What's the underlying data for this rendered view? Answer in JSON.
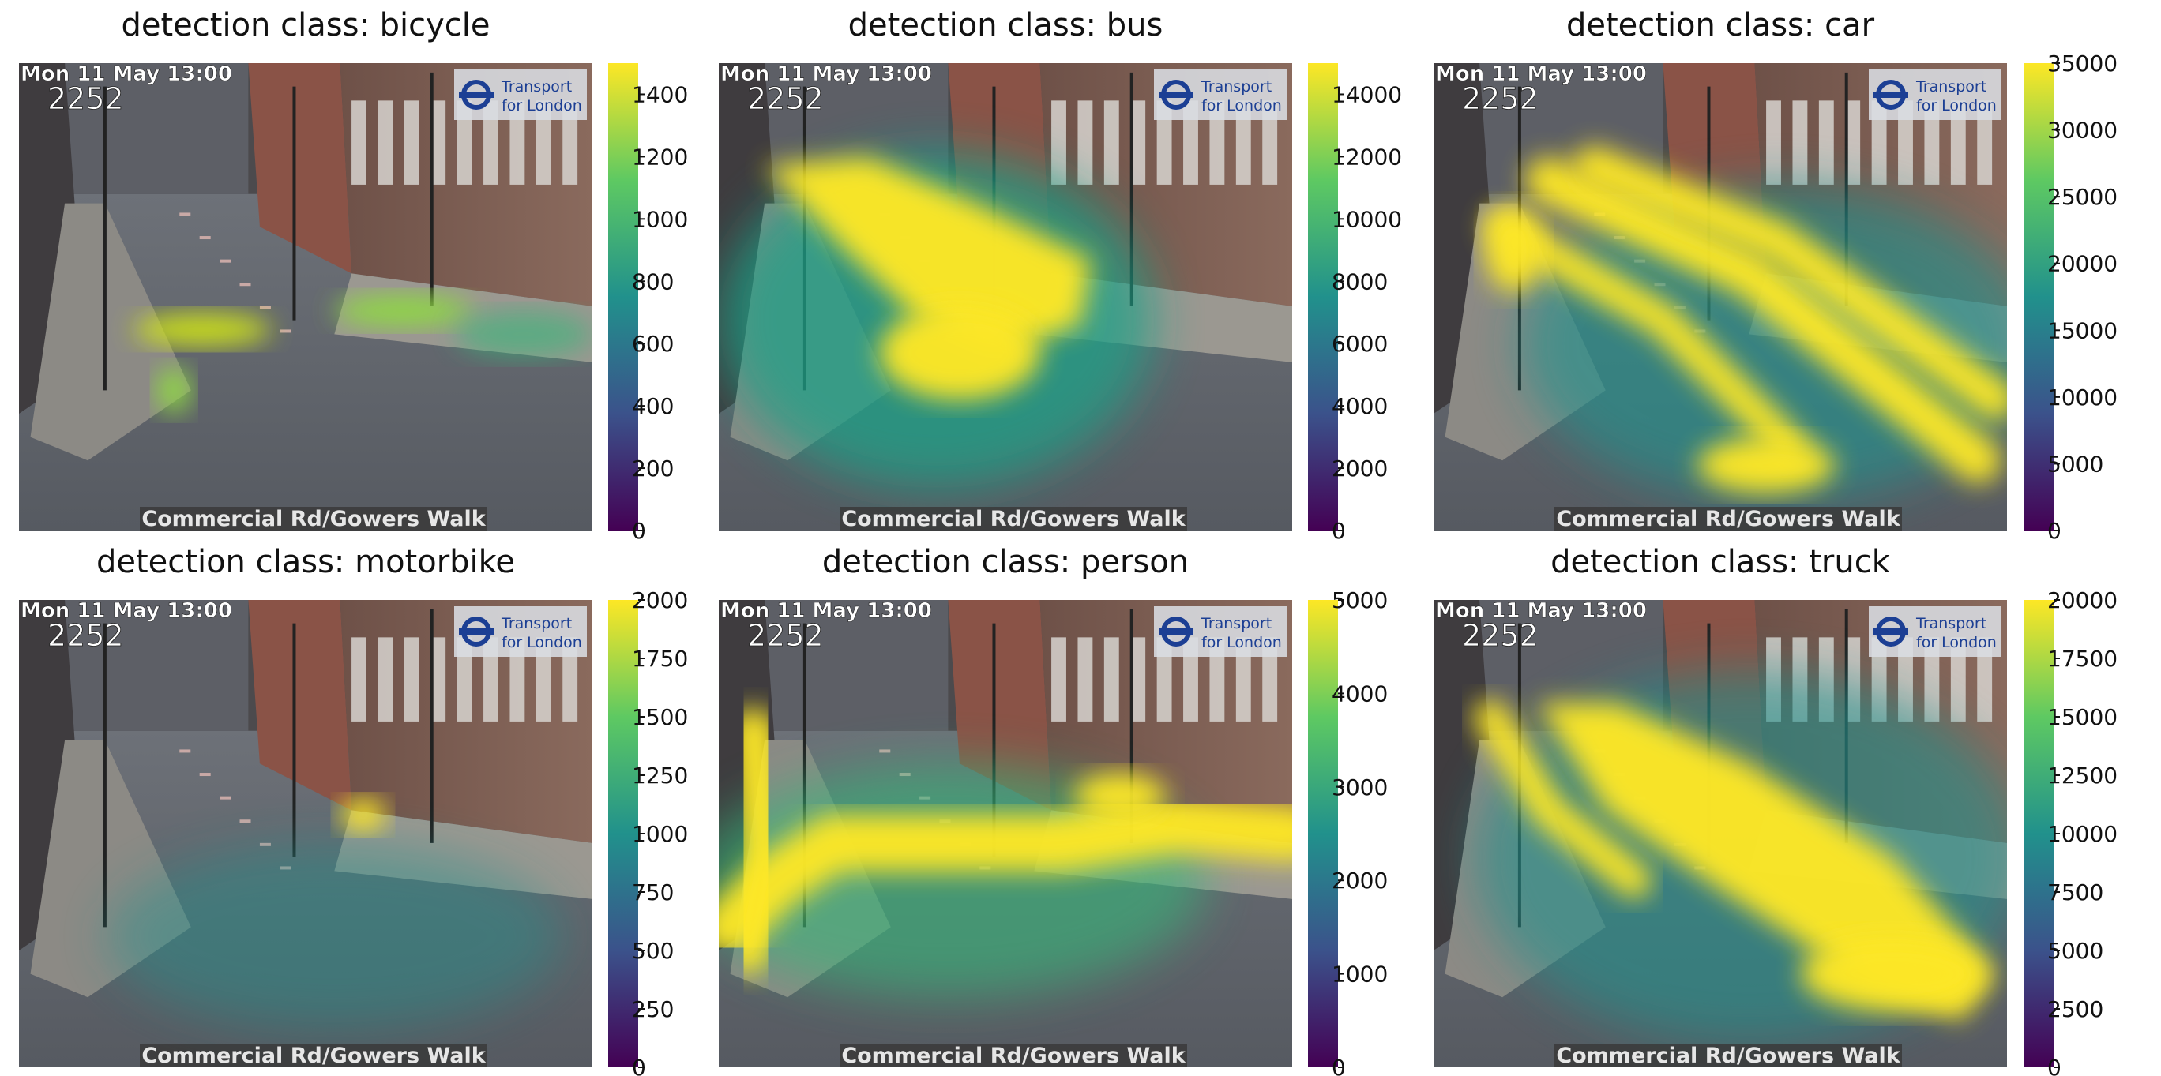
{
  "figure": {
    "colormap": [
      "#440154",
      "#3b528b",
      "#21918c",
      "#5ec962",
      "#fde725"
    ]
  },
  "chart_data": [
    {
      "type": "heatmap",
      "title": "detection class: bicycle",
      "camera": {
        "timestamp": "Mon 11 May 13:00",
        "id": "2252",
        "logo": "Transport for London",
        "location": "Commercial Rd/Gowers Walk"
      },
      "colorbar": {
        "range": [
          0,
          1500
        ],
        "ticks": [
          0,
          200,
          400,
          600,
          800,
          1000,
          1200,
          1400
        ]
      }
    },
    {
      "type": "heatmap",
      "title": "detection class: bus",
      "camera": {
        "timestamp": "Mon 11 May 13:00",
        "id": "2252",
        "logo": "Transport for London",
        "location": "Commercial Rd/Gowers Walk"
      },
      "colorbar": {
        "range": [
          0,
          15000
        ],
        "ticks": [
          0,
          2000,
          4000,
          6000,
          8000,
          10000,
          12000,
          14000
        ]
      }
    },
    {
      "type": "heatmap",
      "title": "detection class: car",
      "camera": {
        "timestamp": "Mon 11 May 13:00",
        "id": "2252",
        "logo": "Transport for London",
        "location": "Commercial Rd/Gowers Walk"
      },
      "colorbar": {
        "range": [
          0,
          35000
        ],
        "ticks": [
          0,
          5000,
          10000,
          15000,
          20000,
          25000,
          30000,
          35000
        ]
      }
    },
    {
      "type": "heatmap",
      "title": "detection class: motorbike",
      "camera": {
        "timestamp": "Mon 11 May 13:00",
        "id": "2252",
        "logo": "Transport for London",
        "location": "Commercial Rd/Gowers Walk"
      },
      "colorbar": {
        "range": [
          0,
          2000
        ],
        "ticks": [
          0,
          250,
          500,
          750,
          1000,
          1250,
          1500,
          1750,
          2000
        ]
      }
    },
    {
      "type": "heatmap",
      "title": "detection class: person",
      "camera": {
        "timestamp": "Mon 11 May 13:00",
        "id": "2252",
        "logo": "Transport for London",
        "location": "Commercial Rd/Gowers Walk"
      },
      "colorbar": {
        "range": [
          0,
          5000
        ],
        "ticks": [
          0,
          1000,
          2000,
          3000,
          4000,
          5000
        ]
      }
    },
    {
      "type": "heatmap",
      "title": "detection class: truck",
      "camera": {
        "timestamp": "Mon 11 May 13:00",
        "id": "2252",
        "logo": "Transport for London",
        "location": "Commercial Rd/Gowers Walk"
      },
      "colorbar": {
        "range": [
          0,
          20000
        ],
        "ticks": [
          0,
          2500,
          5000,
          7500,
          10000,
          12500,
          15000,
          17500,
          20000
        ]
      }
    }
  ]
}
